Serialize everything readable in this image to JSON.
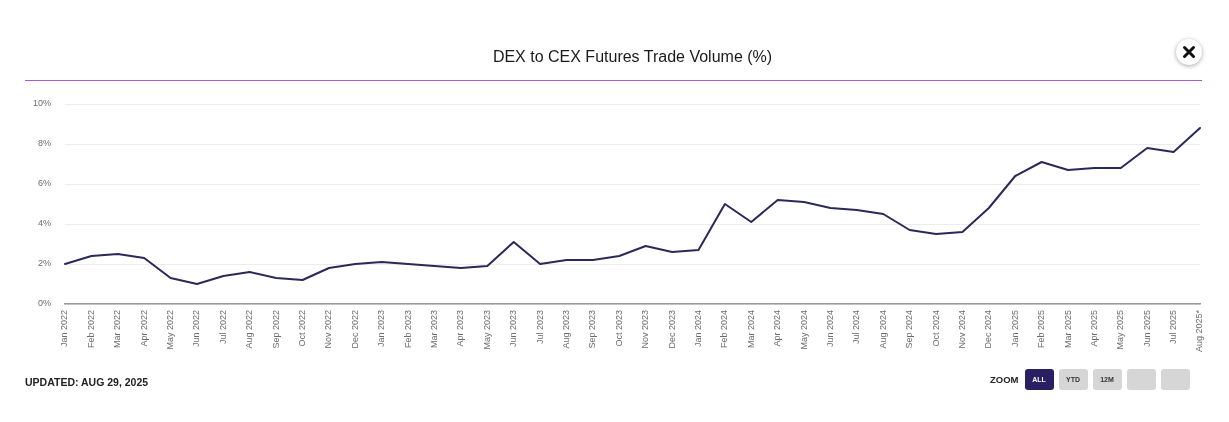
{
  "chart_data": {
    "type": "line",
    "title": "DEX to CEX Futures Trade Volume (%)",
    "categories": [
      "Jan 2022",
      "Feb 2022",
      "Mar 2022",
      "Apr 2022",
      "May 2022",
      "Jun 2022",
      "Jul 2022",
      "Aug 2022",
      "Sep 2022",
      "Oct 2022",
      "Nov 2022",
      "Dec 2022",
      "Jan 2023",
      "Feb 2023",
      "Mar 2023",
      "Apr 2023",
      "May 2023",
      "Jun 2023",
      "Jul 2023",
      "Aug 2023",
      "Sep 2023",
      "Oct 2023",
      "Nov 2023",
      "Dec 2023",
      "Jan 2024",
      "Feb 2024",
      "Mar 2024",
      "Apr 2024",
      "May 2024",
      "Jun 2024",
      "Jul 2024",
      "Aug 2024",
      "Sep 2024",
      "Oct 2024",
      "Nov 2024",
      "Dec 2024",
      "Jan 2025",
      "Feb 2025",
      "Mar 2025",
      "Apr 2025",
      "May 2025",
      "Jun 2025",
      "Jul 2025",
      "Aug 2025*"
    ],
    "values": [
      2.0,
      2.4,
      2.5,
      2.3,
      1.3,
      1.0,
      1.4,
      1.6,
      1.3,
      1.2,
      1.8,
      2.0,
      2.1,
      2.0,
      1.9,
      1.8,
      1.9,
      3.1,
      2.0,
      2.2,
      2.2,
      2.4,
      2.9,
      2.6,
      2.7,
      5.0,
      4.1,
      5.2,
      5.1,
      4.8,
      4.7,
      4.5,
      3.7,
      3.5,
      3.6,
      4.8,
      6.4,
      7.1,
      6.7,
      6.8,
      6.8,
      7.8,
      7.6,
      8.8
    ],
    "color": "#2b2958",
    "ylim": [
      0,
      10
    ],
    "yticks": [
      {
        "value": 0,
        "label": "0%"
      },
      {
        "value": 2,
        "label": "2%"
      },
      {
        "value": 4,
        "label": "4%"
      },
      {
        "value": 6,
        "label": "6%"
      },
      {
        "value": 8,
        "label": "8%"
      },
      {
        "value": 10,
        "label": "10%"
      }
    ],
    "grid": "y",
    "annotations": [
      "UPDATED: AUG 29, 2025",
      "ZOOM",
      "ALL",
      "YTD",
      "12M"
    ]
  }
}
